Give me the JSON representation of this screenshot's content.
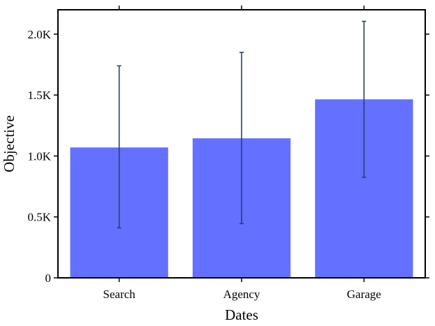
{
  "chart_data": {
    "type": "bar",
    "categories": [
      "Search",
      "Agency",
      "Garage"
    ],
    "series": [
      {
        "values": [
          1070,
          1145,
          1465
        ],
        "error_low": [
          410,
          445,
          825
        ],
        "error_high": [
          1740,
          1850,
          2105
        ]
      }
    ],
    "xlabel": "Dates",
    "ylabel": "Objective",
    "ylim": [
      0,
      2200
    ],
    "yticks": [
      0,
      500,
      1000,
      1500,
      2000
    ],
    "ytick_labels": [
      "0",
      "0.5K",
      "1.0K",
      "1.5K",
      "2.0K"
    ],
    "grid": false,
    "bar_color": "#6470ff",
    "error_color": "#2b3f6b"
  }
}
